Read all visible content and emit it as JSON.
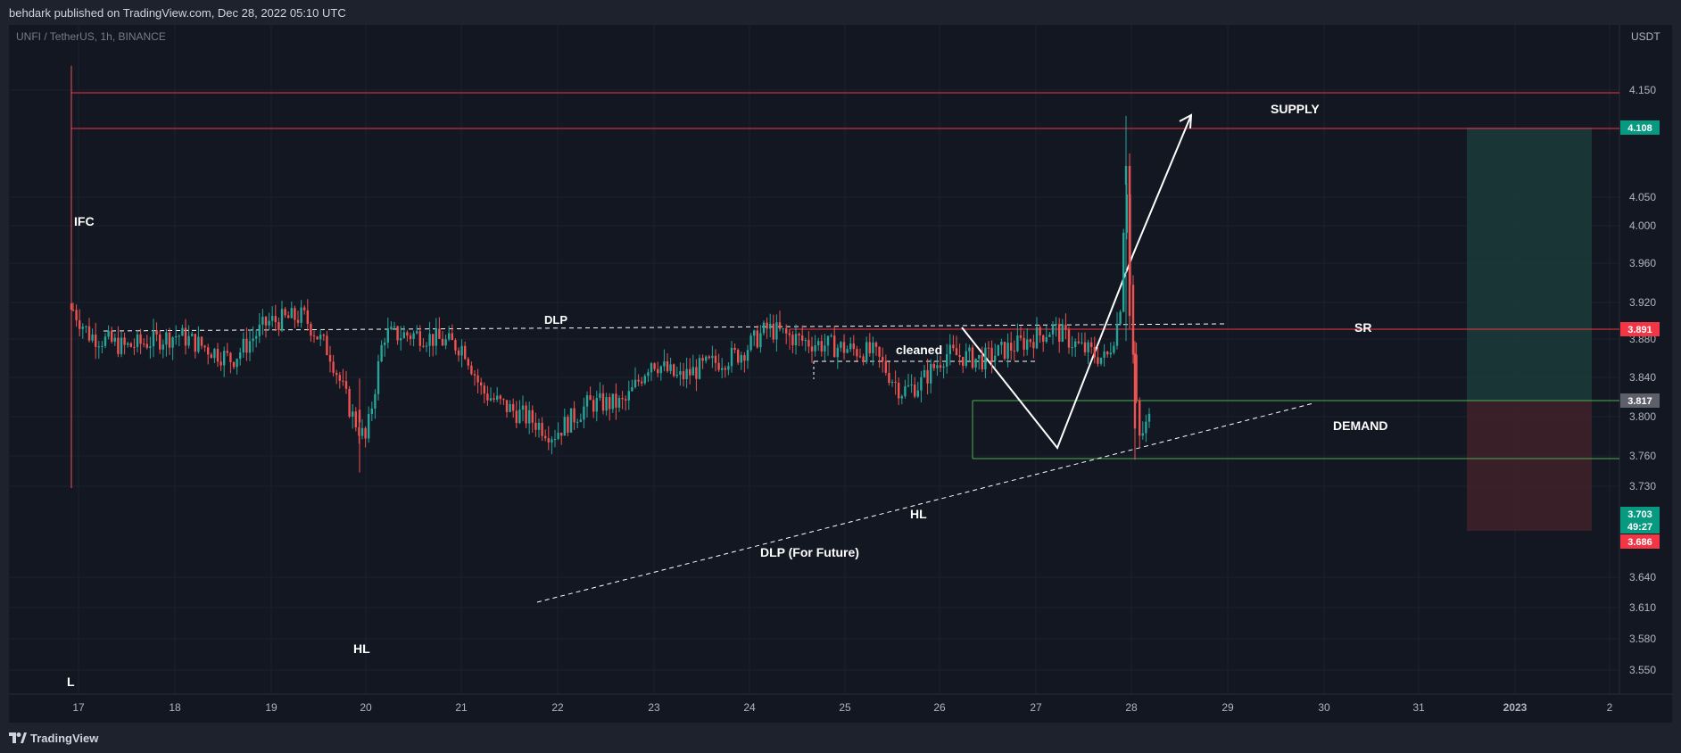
{
  "header": {
    "publisher": "behdark published on TradingView.com, Dec 28, 2022 05:10 UTC"
  },
  "footer": {
    "brand": "TradingView"
  },
  "chart_data": {
    "type": "candlestick",
    "symbol": "UNFI / TetherUS, 1h, BINANCE",
    "currency": "USDT",
    "y_ticks": [
      "4.150",
      "4.050",
      "4.000",
      "3.960",
      "3.920",
      "3.880",
      "3.840",
      "3.800",
      "3.760",
      "3.730",
      "3.640",
      "3.610",
      "3.580",
      "3.550"
    ],
    "x_ticks": [
      "17",
      "18",
      "19",
      "20",
      "21",
      "22",
      "23",
      "24",
      "25",
      "26",
      "27",
      "28",
      "29",
      "30",
      "31",
      "2023",
      "2"
    ],
    "price_labels": [
      {
        "value": "4.108",
        "color": "#089981"
      },
      {
        "value": "3.891",
        "color": "#f23645"
      },
      {
        "value": "3.817",
        "color": "#5d606b"
      },
      {
        "value": "3.703",
        "color": "#089981"
      },
      {
        "value": "49:27",
        "color": "#089981"
      },
      {
        "value": "3.686",
        "color": "#f23645"
      }
    ],
    "annotations": [
      "SUPPLY",
      "IFC",
      "DLP",
      "cleaned",
      "SR",
      "DEMAND",
      "HL",
      "DLP (For Future)",
      "HL",
      "L"
    ],
    "colors": {
      "up": "#26a69a",
      "down": "#ef5350",
      "supply_line": "#f23645",
      "demand_line": "#4caf50"
    }
  }
}
